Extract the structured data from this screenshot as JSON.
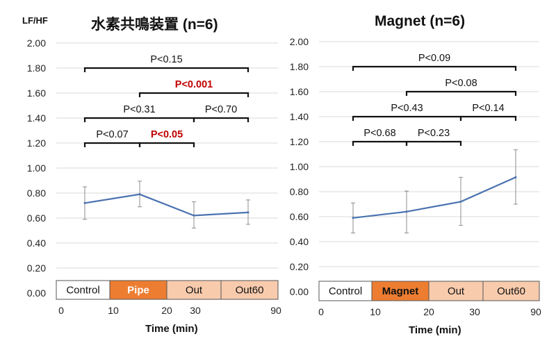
{
  "y_axis_label": "LF/HF",
  "x_axis_label": "Time (min)",
  "chart_data": [
    {
      "type": "line",
      "title": "水素共鳴装置 (n=6)",
      "ylabel": "LF/HF",
      "xlabel": "Time (min)",
      "ylim": [
        0,
        2
      ],
      "y_ticks": [
        "2.00",
        "1.80",
        "1.60",
        "1.40",
        "1.20",
        "1.00",
        "0.80",
        "0.60",
        "0.40",
        "0.20",
        "0.00"
      ],
      "x_tick_labels": [
        "0",
        "10",
        "20",
        "30",
        "90"
      ],
      "phases": [
        {
          "label": "Control",
          "fill": "#ffffff",
          "text_color": "#111111"
        },
        {
          "label": "Pipe",
          "fill": "#ed7d31",
          "text_color": "#ffffff"
        },
        {
          "label": "Out",
          "fill": "#f8cbad",
          "text_color": "#111111"
        },
        {
          "label": "Out60",
          "fill": "#f8cbad",
          "text_color": "#111111"
        }
      ],
      "series": [
        {
          "values": [
            0.72,
            0.79,
            0.62,
            0.645
          ],
          "error_low": [
            0.59,
            0.69,
            0.52,
            0.55
          ],
          "error_high": [
            0.85,
            0.895,
            0.73,
            0.745
          ]
        }
      ],
      "line_color": "#4a72b0",
      "comparisons": [
        {
          "text": "P<0.15",
          "from": 0,
          "to": 3,
          "level": 1.8,
          "color": "#111111"
        },
        {
          "text": "P<0.001",
          "from": 1,
          "to": 3,
          "level": 1.6,
          "color": "#c00000"
        },
        {
          "text": "P<0.31",
          "from": 0,
          "to": 2,
          "level": 1.4,
          "color": "#111111"
        },
        {
          "text": "P<0.70",
          "from": 2,
          "to": 3,
          "level": 1.4,
          "color": "#111111"
        },
        {
          "text": "P<0.07",
          "from": 0,
          "to": 1,
          "level": 1.2,
          "color": "#111111"
        },
        {
          "text": "P<0.05",
          "from": 1,
          "to": 2,
          "level": 1.2,
          "color": "#c00000"
        }
      ]
    },
    {
      "type": "line",
      "title": "Magnet (n=6)",
      "xlabel": "Time (min)",
      "ylim": [
        0,
        2
      ],
      "y_ticks": [
        "2.00",
        "1.80",
        "1.60",
        "1.40",
        "1.20",
        "1.00",
        "0.80",
        "0.60",
        "0.40",
        "0.20",
        "0.00"
      ],
      "x_tick_labels": [
        "0",
        "10",
        "20",
        "30",
        "90"
      ],
      "phases": [
        {
          "label": "Control",
          "fill": "#ffffff",
          "text_color": "#111111"
        },
        {
          "label": "Magnet",
          "fill": "#ed7d31",
          "text_color": "#111111"
        },
        {
          "label": "Out",
          "fill": "#f8cbad",
          "text_color": "#111111"
        },
        {
          "label": "Out60",
          "fill": "#f8cbad",
          "text_color": "#111111"
        }
      ],
      "series": [
        {
          "values": [
            0.59,
            0.64,
            0.72,
            0.915
          ],
          "error_low": [
            0.47,
            0.47,
            0.53,
            0.7
          ],
          "error_high": [
            0.71,
            0.805,
            0.915,
            1.135
          ]
        }
      ],
      "line_color": "#4a72b0",
      "comparisons": [
        {
          "text": "P<0.09",
          "from": 0,
          "to": 3,
          "level": 1.8,
          "color": "#111111"
        },
        {
          "text": "P<0.08",
          "from": 1,
          "to": 3,
          "level": 1.6,
          "color": "#111111"
        },
        {
          "text": "P<0.43",
          "from": 0,
          "to": 2,
          "level": 1.4,
          "color": "#111111"
        },
        {
          "text": "P<0.14",
          "from": 2,
          "to": 3,
          "level": 1.4,
          "color": "#111111"
        },
        {
          "text": "P<0.68",
          "from": 0,
          "to": 1,
          "level": 1.2,
          "color": "#111111"
        },
        {
          "text": "P<0.23",
          "from": 1,
          "to": 2,
          "level": 1.2,
          "color": "#111111"
        }
      ]
    }
  ]
}
